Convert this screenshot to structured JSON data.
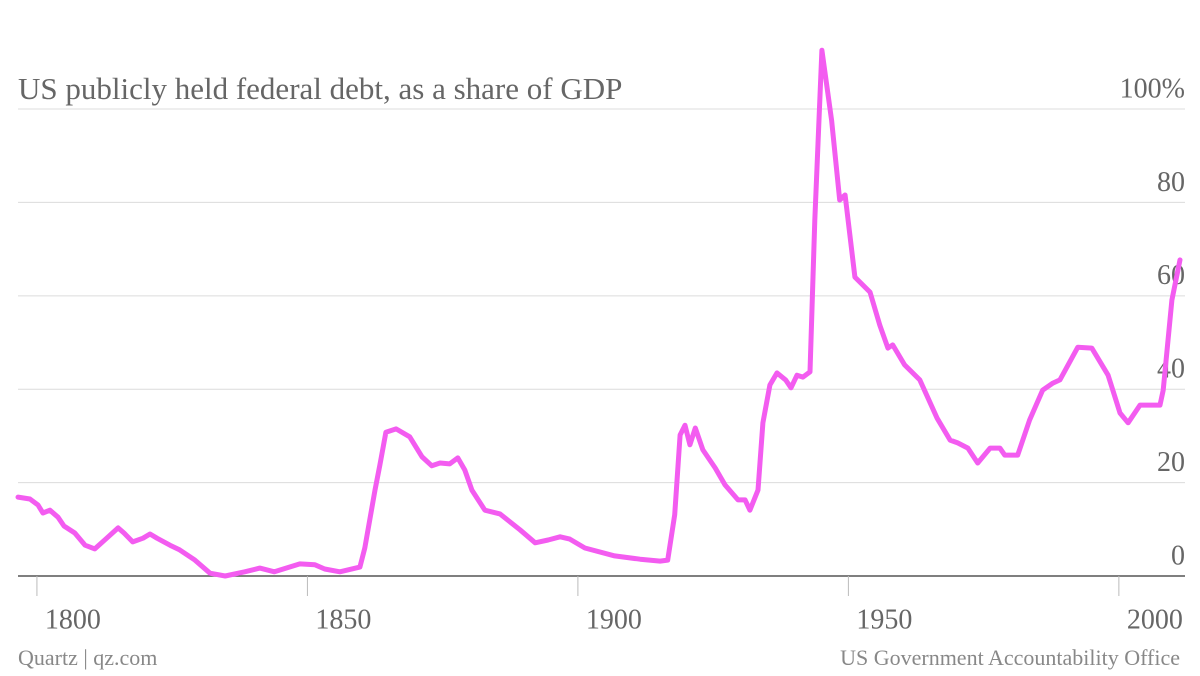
{
  "chart_data": {
    "type": "line",
    "title": "US publicly held federal debt, as a share of GDP",
    "source_left": "Quartz | qz.com",
    "source_right": "US Government Accountability Office",
    "color": "#f35cf0",
    "grid": true,
    "xlim": [
      1796.5,
      2011.3
    ],
    "xticks": [
      1800,
      1850,
      1900,
      1950,
      2000
    ],
    "ylim": [
      0,
      115
    ],
    "yticks": [
      0,
      20,
      40,
      60,
      80,
      {
        "value": 100,
        "label": "100%"
      }
    ],
    "x": [
      1796.5,
      1798.7,
      1800.2,
      1801.1,
      1802.4,
      1803.9,
      1805,
      1807,
      1808.9,
      1810.7,
      1812.9,
      1815,
      1816.1,
      1817.7,
      1819.6,
      1820.9,
      1822.2,
      1824.6,
      1826.4,
      1829.2,
      1832,
      1834.8,
      1838.4,
      1841.2,
      1843.9,
      1848.6,
      1851.4,
      1853.2,
      1856,
      1859.7,
      1860.6,
      1862.5,
      1863.4,
      1864.5,
      1866.4,
      1868.9,
      1871.2,
      1873,
      1874.5,
      1876.3,
      1877.8,
      1879.1,
      1880.4,
      1882.8,
      1885.6,
      1889.3,
      1892.1,
      1894.5,
      1896.7,
      1898.5,
      1901.3,
      1906.8,
      1911.5,
      1915.2,
      1916.6,
      1917.9,
      1918.9,
      1919.8,
      1920.7,
      1921.7,
      1923.1,
      1925.4,
      1927.2,
      1929.6,
      1930.9,
      1931.8,
      1933.3,
      1934.2,
      1935.5,
      1936.8,
      1938.4,
      1939.4,
      1940.5,
      1941.6,
      1942.9,
      1943.8,
      1945.1,
      1946.9,
      1948.4,
      1949.4,
      1951.2,
      1954,
      1955.8,
      1957.3,
      1958.2,
      1960.4,
      1963.2,
      1966.4,
      1968.8,
      1970.2,
      1972.1,
      1973.9,
      1976.2,
      1978,
      1978.9,
      1981.3,
      1983.5,
      1985.9,
      1987.8,
      1989.1,
      1992.4,
      1995,
      1998,
      2000.2,
      2001.7,
      2003.9,
      2007.6,
      2008.2,
      2009.8,
      2011.3
    ],
    "values": [
      16.9,
      16.5,
      15.2,
      13.5,
      14.1,
      12.6,
      10.7,
      9.2,
      6.6,
      5.8,
      8.1,
      10.3,
      9.2,
      7.3,
      8.1,
      9,
      8.1,
      6.6,
      5.6,
      3.4,
      0.6,
      0,
      0.9,
      1.7,
      0.9,
      2.6,
      2.4,
      1.5,
      0.9,
      1.9,
      6,
      18.4,
      23.8,
      30.8,
      31.5,
      29.8,
      25.5,
      23.6,
      24.2,
      24,
      25.3,
      22.7,
      18.4,
      14.1,
      13.3,
      9.9,
      7.1,
      7.7,
      8.4,
      7.9,
      6,
      4.3,
      3.6,
      3.2,
      3.4,
      13.1,
      30.2,
      32.3,
      28.1,
      31.7,
      27,
      23.1,
      19.5,
      16.3,
      16.3,
      14.1,
      18.4,
      32.8,
      40.9,
      43.5,
      42,
      40.3,
      43,
      42.6,
      43.7,
      76.2,
      112.6,
      97.6,
      80.5,
      81.6,
      64,
      60.8,
      53.7,
      48.8,
      49.5,
      45.2,
      42,
      33.8,
      29.1,
      28.5,
      27.4,
      24.2,
      27.4,
      27.4,
      25.9,
      25.9,
      33.4,
      39.8,
      41.3,
      42,
      49,
      48.8,
      43,
      34.9,
      32.8,
      36.6,
      36.6,
      39.8,
      59.1,
      67.7
    ]
  }
}
